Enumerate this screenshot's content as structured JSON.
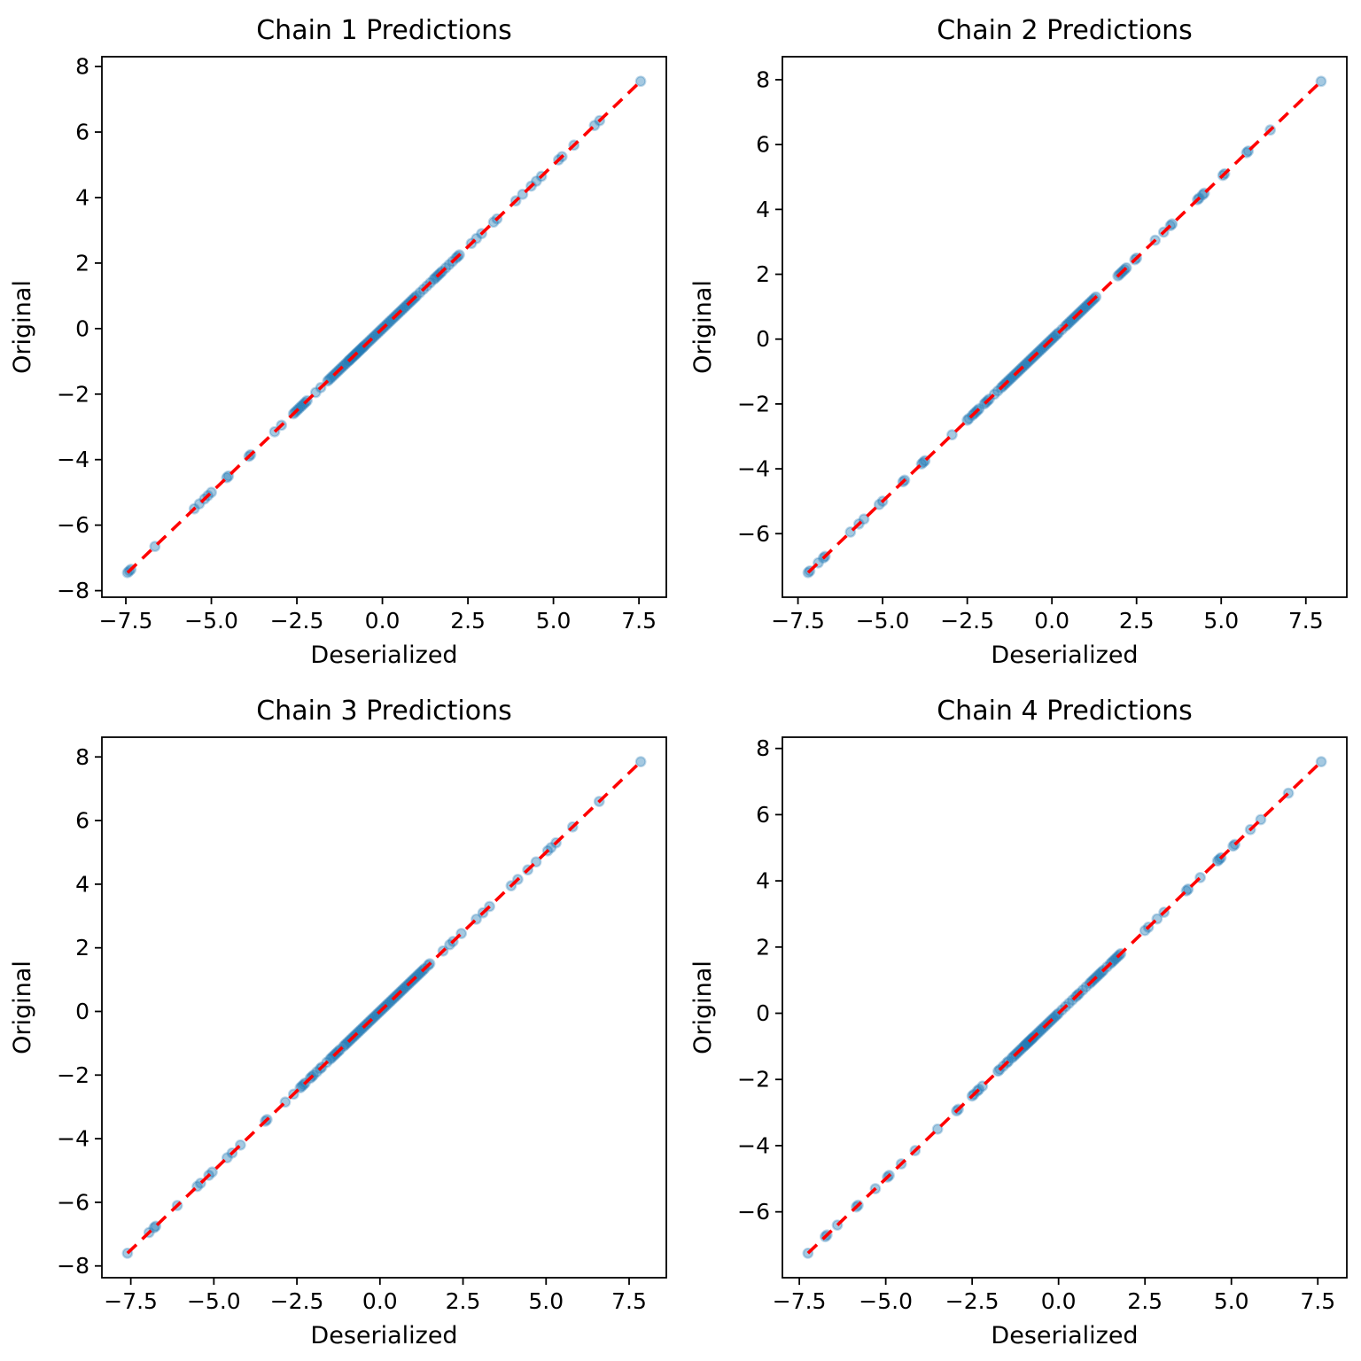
{
  "figure": {
    "background": "#ffffff",
    "marker_color": "#1f77b4",
    "marker_alpha": 0.4,
    "line_color": "#ff0000",
    "line_style": "dashed",
    "axis_color": "#000000"
  },
  "chart_data": [
    {
      "type": "scatter",
      "title": "Chain 1 Predictions",
      "xlabel": "Deserialized",
      "ylabel": "Original",
      "y_equals_x": true,
      "identity_line": {
        "color": "#ff0000",
        "style": "dashed"
      },
      "xlim": [
        -8.2,
        8.3
      ],
      "ylim": [
        -8.2,
        8.3
      ],
      "x_ticks": [
        -7.5,
        -5.0,
        -2.5,
        0.0,
        2.5,
        5.0,
        7.5
      ],
      "x_tick_labels": [
        "−7.5",
        "−5.0",
        "−2.5",
        "0.0",
        "2.5",
        "5.0",
        "7.5"
      ],
      "y_ticks": [
        -8,
        -6,
        -4,
        -2,
        0,
        2,
        4,
        6,
        8
      ],
      "y_tick_labels": [
        "−8",
        "−6",
        "−4",
        "−2",
        "0",
        "2",
        "4",
        "6",
        "8"
      ],
      "x": [
        -7.45,
        -7.4,
        -7.35,
        -6.65,
        -5.5,
        -5.35,
        -5.2,
        -5.1,
        -5.0,
        -4.55,
        -4.5,
        -3.9,
        -3.85,
        -3.15,
        -2.95,
        -2.6,
        -2.55,
        -2.5,
        -2.45,
        -2.4,
        -2.35,
        -2.3,
        -2.25,
        -2.2,
        -1.95,
        -1.8,
        -1.6,
        -1.55,
        -1.5,
        -1.45,
        -1.4,
        -1.35,
        -1.3,
        -1.25,
        -1.2,
        -1.15,
        -1.1,
        -1.05,
        -1.0,
        -0.97,
        -0.94,
        -0.9,
        -0.87,
        -0.84,
        -0.8,
        -0.77,
        -0.74,
        -0.7,
        -0.67,
        -0.64,
        -0.6,
        -0.57,
        -0.54,
        -0.5,
        -0.45,
        -0.4,
        -0.35,
        -0.3,
        -0.25,
        -0.2,
        -0.15,
        -0.1,
        -0.05,
        0.0,
        0.05,
        0.1,
        0.15,
        0.2,
        0.25,
        0.3,
        0.35,
        0.4,
        0.45,
        0.5,
        0.55,
        0.6,
        0.65,
        0.7,
        0.75,
        0.8,
        0.85,
        0.9,
        0.95,
        1.0,
        1.1,
        1.2,
        1.3,
        1.4,
        1.5,
        1.55,
        1.6,
        1.65,
        1.7,
        1.75,
        1.85,
        1.95,
        2.05,
        2.15,
        2.2,
        2.25,
        2.6,
        2.75,
        2.9,
        3.25,
        3.35,
        3.9,
        4.1,
        4.35,
        4.5,
        4.65,
        5.15,
        5.25,
        5.6,
        6.2,
        6.35,
        7.55
      ]
    },
    {
      "type": "scatter",
      "title": "Chain 2 Predictions",
      "xlabel": "Deserialized",
      "ylabel": "Original",
      "y_equals_x": true,
      "identity_line": {
        "color": "#ff0000",
        "style": "dashed"
      },
      "xlim": [
        -7.96,
        8.71
      ],
      "ylim": [
        -7.96,
        8.71
      ],
      "x_ticks": [
        -7.5,
        -5.0,
        -2.5,
        0.0,
        2.5,
        5.0,
        7.5
      ],
      "x_tick_labels": [
        "−7.5",
        "−5.0",
        "−2.5",
        "0.0",
        "2.5",
        "5.0",
        "7.5"
      ],
      "y_ticks": [
        -6,
        -4,
        -2,
        0,
        2,
        4,
        6,
        8
      ],
      "y_tick_labels": [
        "−6",
        "−4",
        "−2",
        "0",
        "2",
        "4",
        "6",
        "8"
      ],
      "x": [
        -7.2,
        -7.15,
        -6.9,
        -6.75,
        -6.7,
        -5.95,
        -5.7,
        -5.55,
        -5.1,
        -5.0,
        -4.4,
        -4.35,
        -3.85,
        -3.8,
        -3.75,
        -2.95,
        -2.5,
        -2.45,
        -2.35,
        -2.3,
        -2.25,
        -2.2,
        -2.15,
        -2.0,
        -1.95,
        -1.9,
        -1.85,
        -1.7,
        -1.6,
        -1.5,
        -1.45,
        -1.4,
        -1.35,
        -1.3,
        -1.25,
        -1.2,
        -1.15,
        -1.1,
        -1.05,
        -1.0,
        -0.95,
        -0.9,
        -0.85,
        -0.8,
        -0.75,
        -0.7,
        -0.65,
        -0.6,
        -0.55,
        -0.5,
        -0.45,
        -0.4,
        -0.35,
        -0.3,
        -0.25,
        -0.2,
        -0.15,
        -0.1,
        -0.05,
        0.0,
        0.05,
        0.1,
        0.15,
        0.2,
        0.3,
        0.4,
        0.45,
        0.5,
        0.55,
        0.6,
        0.65,
        0.7,
        0.75,
        0.8,
        0.85,
        0.9,
        0.95,
        1.0,
        1.05,
        1.1,
        1.15,
        1.2,
        1.25,
        1.3,
        1.95,
        2.0,
        2.05,
        2.1,
        2.15,
        2.2,
        2.45,
        2.5,
        3.05,
        3.3,
        3.5,
        3.55,
        4.3,
        4.35,
        4.45,
        4.5,
        5.05,
        5.1,
        5.75,
        5.8,
        6.45,
        7.95
      ]
    },
    {
      "type": "scatter",
      "title": "Chain 3 Predictions",
      "xlabel": "Deserialized",
      "ylabel": "Original",
      "y_equals_x": true,
      "identity_line": {
        "color": "#ff0000",
        "style": "dashed"
      },
      "xlim": [
        -8.37,
        8.62
      ],
      "ylim": [
        -8.37,
        8.62
      ],
      "x_ticks": [
        -7.5,
        -5.0,
        -2.5,
        0.0,
        2.5,
        5.0,
        7.5
      ],
      "x_tick_labels": [
        "−7.5",
        "−5.0",
        "−2.5",
        "0.0",
        "2.5",
        "5.0",
        "7.5"
      ],
      "y_ticks": [
        -8,
        -6,
        -4,
        -2,
        0,
        2,
        4,
        6,
        8
      ],
      "y_tick_labels": [
        "−8",
        "−6",
        "−4",
        "−2",
        "0",
        "2",
        "4",
        "6",
        "8"
      ],
      "x": [
        -7.6,
        -6.95,
        -6.8,
        -6.75,
        -6.1,
        -5.5,
        -5.4,
        -5.15,
        -5.05,
        -4.6,
        -4.45,
        -4.2,
        -3.45,
        -3.4,
        -2.85,
        -2.6,
        -2.4,
        -2.35,
        -2.3,
        -2.25,
        -2.1,
        -2.05,
        -2.0,
        -1.9,
        -1.8,
        -1.75,
        -1.6,
        -1.5,
        -1.45,
        -1.4,
        -1.35,
        -1.3,
        -1.25,
        -1.2,
        -1.1,
        -1.05,
        -1.0,
        -0.95,
        -0.9,
        -0.85,
        -0.8,
        -0.75,
        -0.7,
        -0.65,
        -0.6,
        -0.55,
        -0.5,
        -0.45,
        -0.4,
        -0.35,
        -0.3,
        -0.25,
        -0.2,
        -0.15,
        -0.1,
        -0.05,
        0.0,
        0.05,
        0.1,
        0.15,
        0.2,
        0.25,
        0.3,
        0.35,
        0.4,
        0.45,
        0.5,
        0.55,
        0.6,
        0.65,
        0.7,
        0.75,
        0.8,
        0.85,
        0.9,
        0.95,
        1.0,
        1.05,
        1.1,
        1.15,
        1.2,
        1.25,
        1.3,
        1.35,
        1.45,
        1.5,
        1.9,
        2.1,
        2.2,
        2.45,
        2.9,
        3.1,
        3.3,
        3.95,
        4.15,
        4.45,
        4.7,
        5.05,
        5.15,
        5.3,
        5.8,
        6.6,
        7.85
      ]
    },
    {
      "type": "scatter",
      "title": "Chain 4 Predictions",
      "xlabel": "Deserialized",
      "ylabel": "Original",
      "y_equals_x": true,
      "identity_line": {
        "color": "#ff0000",
        "style": "dashed"
      },
      "xlim": [
        -7.99,
        8.34
      ],
      "ylim": [
        -7.99,
        8.34
      ],
      "x_ticks": [
        -7.5,
        -5.0,
        -2.5,
        0.0,
        2.5,
        5.0,
        7.5
      ],
      "x_tick_labels": [
        "−7.5",
        "−5.0",
        "−2.5",
        "0.0",
        "2.5",
        "5.0",
        "7.5"
      ],
      "y_ticks": [
        -6,
        -4,
        -2,
        0,
        2,
        4,
        6,
        8
      ],
      "y_tick_labels": [
        "−6",
        "−4",
        "−2",
        "0",
        "2",
        "4",
        "6",
        "8"
      ],
      "x": [
        -7.25,
        -6.75,
        -6.7,
        -6.4,
        -5.85,
        -5.8,
        -5.3,
        -4.95,
        -4.9,
        -4.55,
        -4.15,
        -3.5,
        -2.95,
        -2.9,
        -2.5,
        -2.45,
        -2.35,
        -2.3,
        -2.2,
        -1.75,
        -1.7,
        -1.6,
        -1.5,
        -1.45,
        -1.35,
        -1.3,
        -1.25,
        -1.2,
        -1.15,
        -1.1,
        -1.05,
        -1.0,
        -0.97,
        -0.94,
        -0.9,
        -0.87,
        -0.84,
        -0.8,
        -0.77,
        -0.74,
        -0.7,
        -0.65,
        -0.6,
        -0.55,
        -0.5,
        -0.45,
        -0.4,
        -0.35,
        -0.3,
        -0.25,
        -0.2,
        -0.15,
        -0.1,
        -0.05,
        0.0,
        0.1,
        0.2,
        0.3,
        0.4,
        0.5,
        0.55,
        0.6,
        0.7,
        0.8,
        0.9,
        0.95,
        1.0,
        1.05,
        1.1,
        1.15,
        1.2,
        1.25,
        1.3,
        1.4,
        1.5,
        1.55,
        1.6,
        1.65,
        1.7,
        1.75,
        1.8,
        2.5,
        2.6,
        2.85,
        3.05,
        3.7,
        3.75,
        4.1,
        4.6,
        4.65,
        4.7,
        5.05,
        5.1,
        5.55,
        5.85,
        6.65,
        7.6
      ]
    }
  ]
}
